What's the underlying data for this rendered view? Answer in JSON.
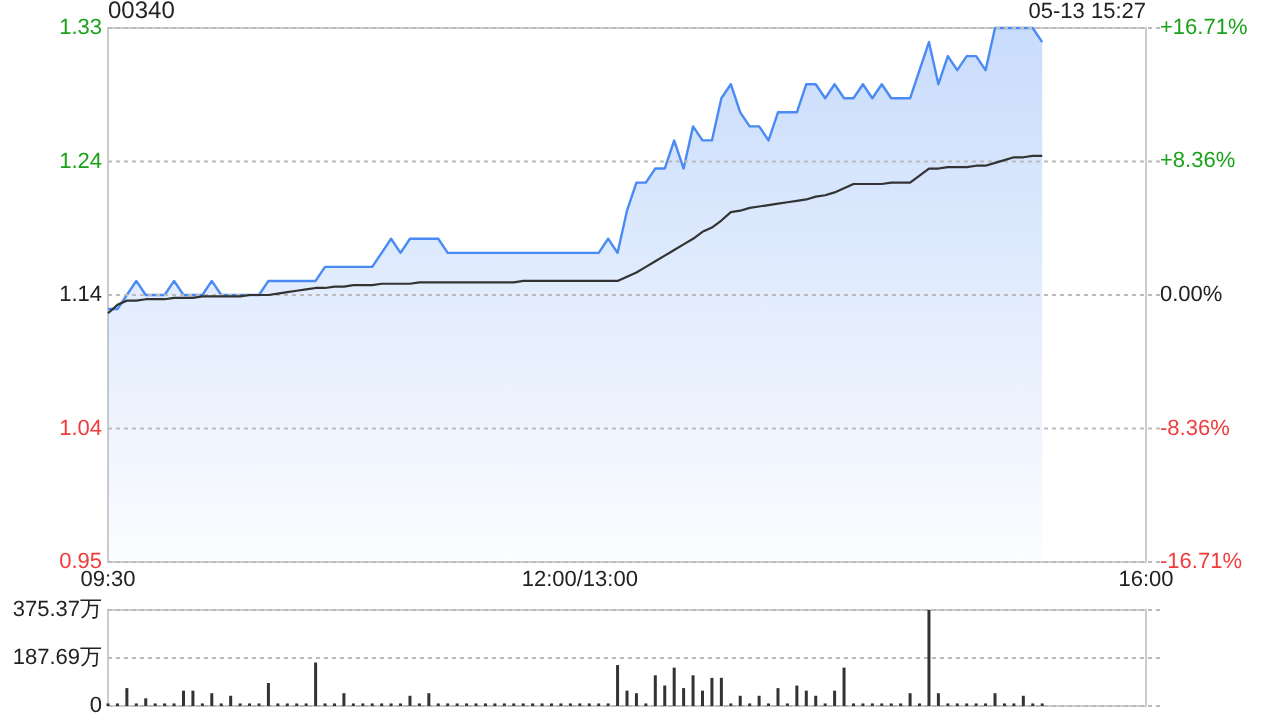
{
  "chart_data": [
    {
      "type": "line",
      "title": "00340",
      "annotations": [
        "05-13 15:27"
      ],
      "categories": [
        "09:30",
        null,
        null,
        null,
        null,
        null,
        null,
        null,
        null,
        null,
        null,
        null,
        null,
        null,
        null,
        null,
        null,
        null,
        null,
        null,
        null,
        null,
        null,
        null,
        null,
        null,
        null,
        null,
        null,
        null,
        null,
        null,
        null,
        null,
        null,
        null,
        null,
        null,
        null,
        null,
        null,
        null,
        null,
        null,
        null,
        null,
        null,
        null,
        null,
        null,
        "12:00/13:00",
        null,
        null,
        null,
        null,
        null,
        null,
        null,
        null,
        null,
        null,
        null,
        null,
        null,
        null,
        null,
        null,
        null,
        null,
        null,
        null,
        null,
        null,
        null,
        null,
        null,
        null,
        null,
        null,
        null,
        null,
        null,
        null,
        null,
        null,
        null,
        null,
        null,
        null,
        null,
        null,
        null,
        null,
        null,
        null,
        null,
        null,
        null,
        null,
        null,
        null,
        null,
        null,
        null,
        null,
        null,
        null,
        null,
        null,
        null,
        "16:00"
      ],
      "ylim": [
        0.95,
        1.33
      ],
      "yticks": [
        0.95,
        {
          "value": 1.045,
          "label": "1.04"
        },
        1.14,
        {
          "value": 1.235,
          "label": "1.24"
        },
        1.33
      ],
      "y2lim": [
        -16.71,
        16.71
      ],
      "y2ticks": [
        {
          "value": -16.71,
          "label": "-16.71%"
        },
        {
          "value": -8.36,
          "label": "-8.36%"
        },
        {
          "value": 0,
          "label": "0.00%"
        },
        {
          "value": 8.36,
          "label": "+8.36%"
        },
        {
          "value": 16.71,
          "label": "+16.71%"
        }
      ],
      "grid": "y",
      "series": [
        {
          "type": "area",
          "color": "#4a8af4",
          "values": [
            1.13,
            1.13,
            1.14,
            1.15,
            1.14,
            1.14,
            1.14,
            1.15,
            1.14,
            1.14,
            1.14,
            1.15,
            1.14,
            1.14,
            1.14,
            1.14,
            1.14,
            1.15,
            1.15,
            1.15,
            1.15,
            1.15,
            1.15,
            1.16,
            1.16,
            1.16,
            1.16,
            1.16,
            1.16,
            1.17,
            1.18,
            1.17,
            1.18,
            1.18,
            1.18,
            1.18,
            1.17,
            1.17,
            1.17,
            1.17,
            1.17,
            1.17,
            1.17,
            1.17,
            1.17,
            1.17,
            1.17,
            1.17,
            1.17,
            1.17,
            1.17,
            1.17,
            1.17,
            1.18,
            1.17,
            1.2,
            1.22,
            1.22,
            1.23,
            1.23,
            1.25,
            1.23,
            1.26,
            1.25,
            1.25,
            1.28,
            1.29,
            1.27,
            1.26,
            1.26,
            1.25,
            1.27,
            1.27,
            1.27,
            1.29,
            1.29,
            1.28,
            1.29,
            1.28,
            1.28,
            1.29,
            1.28,
            1.29,
            1.28,
            1.28,
            1.28,
            1.3,
            1.32,
            1.29,
            1.31,
            1.3,
            1.31,
            1.31,
            1.3,
            1.33,
            1.33,
            1.33,
            1.33,
            1.33,
            1.32,
            null,
            null,
            null,
            null,
            null,
            null,
            null,
            null,
            null,
            null,
            null
          ]
        },
        {
          "color": "#333333",
          "values": [
            1.127,
            1.133,
            1.136,
            1.136,
            1.137,
            1.137,
            1.137,
            1.138,
            1.138,
            1.138,
            1.139,
            1.139,
            1.139,
            1.139,
            1.139,
            1.14,
            1.14,
            1.14,
            1.141,
            1.142,
            1.143,
            1.144,
            1.145,
            1.145,
            1.146,
            1.146,
            1.147,
            1.147,
            1.147,
            1.148,
            1.148,
            1.148,
            1.148,
            1.149,
            1.149,
            1.149,
            1.149,
            1.149,
            1.149,
            1.149,
            1.149,
            1.149,
            1.149,
            1.149,
            1.15,
            1.15,
            1.15,
            1.15,
            1.15,
            1.15,
            1.15,
            1.15,
            1.15,
            1.15,
            1.15,
            1.153,
            1.156,
            1.16,
            1.164,
            1.168,
            1.172,
            1.176,
            1.18,
            1.185,
            1.188,
            1.193,
            1.199,
            1.2,
            1.202,
            1.203,
            1.204,
            1.205,
            1.206,
            1.207,
            1.208,
            1.21,
            1.211,
            1.213,
            1.216,
            1.219,
            1.219,
            1.219,
            1.219,
            1.22,
            1.22,
            1.22,
            1.225,
            1.23,
            1.23,
            1.231,
            1.231,
            1.231,
            1.232,
            1.232,
            1.234,
            1.236,
            1.238,
            1.238,
            1.239,
            1.239,
            null,
            null,
            null,
            null,
            null,
            null,
            null,
            null,
            null,
            null,
            null
          ]
        }
      ]
    },
    {
      "type": "bar",
      "grid": "y",
      "color": "#333333",
      "categories": [
        null,
        null,
        null,
        null,
        null,
        null,
        null,
        null,
        null,
        null,
        null,
        null,
        null,
        null,
        null,
        null,
        null,
        null,
        null,
        null,
        null,
        null,
        null,
        null,
        null,
        null,
        null,
        null,
        null,
        null,
        null,
        null,
        null,
        null,
        null,
        null,
        null,
        null,
        null,
        null,
        null,
        null,
        null,
        null,
        null,
        null,
        null,
        null,
        null,
        null,
        null,
        null,
        null,
        null,
        null,
        null,
        null,
        null,
        null,
        null,
        null,
        null,
        null,
        null,
        null,
        null,
        null,
        null,
        null,
        null,
        null,
        null,
        null,
        null,
        null,
        null,
        null,
        null,
        null,
        null,
        null,
        null,
        null,
        null,
        null,
        null,
        null,
        null,
        null,
        null,
        null,
        null,
        null,
        null,
        null,
        null,
        null,
        null,
        null,
        null,
        null,
        null,
        null,
        null,
        null,
        null,
        null,
        null,
        null,
        null,
        null
      ],
      "ylim": [
        0,
        375.37
      ],
      "yticks": [
        0,
        {
          "value": 187.69,
          "label": "187.69万"
        },
        {
          "value": 375.37,
          "label": "375.37万"
        }
      ],
      "values": [
        10,
        10,
        70,
        10,
        30,
        10,
        10,
        10,
        60,
        60,
        10,
        50,
        10,
        40,
        10,
        10,
        10,
        90,
        10,
        10,
        10,
        10,
        170,
        10,
        10,
        50,
        10,
        10,
        10,
        10,
        10,
        10,
        40,
        10,
        50,
        10,
        10,
        10,
        10,
        10,
        10,
        10,
        10,
        10,
        10,
        10,
        10,
        10,
        10,
        10,
        10,
        10,
        10,
        10,
        160,
        60,
        50,
        10,
        120,
        80,
        150,
        70,
        120,
        60,
        110,
        110,
        10,
        40,
        10,
        40,
        10,
        70,
        10,
        80,
        60,
        40,
        10,
        60,
        150,
        10,
        10,
        10,
        10,
        10,
        10,
        50,
        10,
        375.37,
        50,
        10,
        10,
        10,
        10,
        10,
        50,
        10,
        10,
        40,
        10,
        10,
        null,
        null,
        null,
        null,
        null,
        null,
        null,
        null,
        null,
        null,
        null
      ]
    }
  ]
}
